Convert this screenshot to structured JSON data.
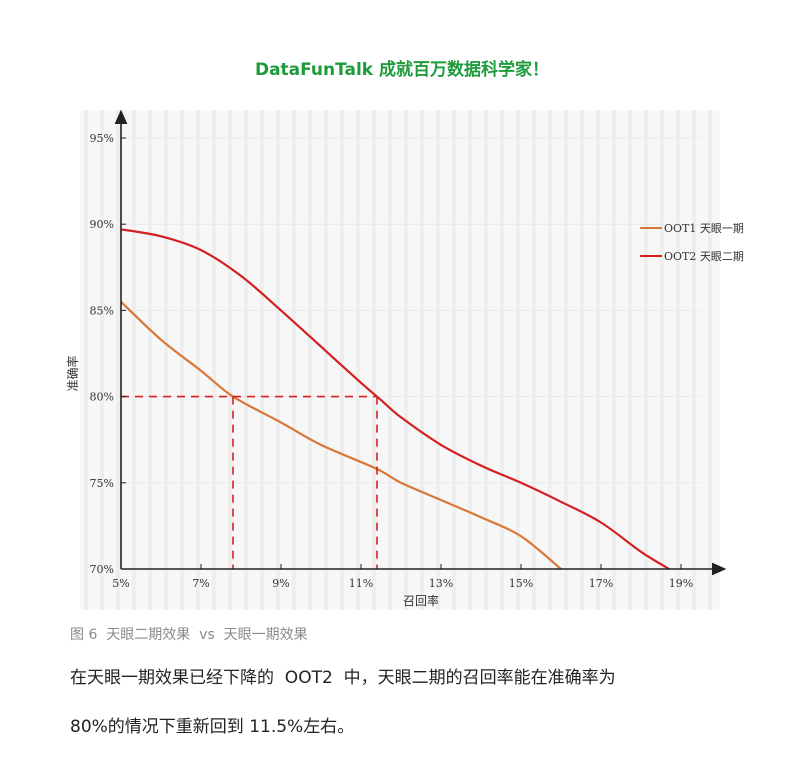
{
  "banner": {
    "text": "DataFunTalk 成就百万数据科学家！"
  },
  "caption": "图 6  天眼二期效果  vs  天眼一期效果",
  "paragraph": {
    "line1": "在天眼一期效果已经下降的  OOT2  中，天眼二期的召回率能在准确率为",
    "line2": "80%的情况下重新回到 11.5%左右。"
  },
  "chart_data": {
    "type": "line",
    "xlabel": "召回率",
    "ylabel": "准确率",
    "xlim": [
      5,
      19
    ],
    "ylim": [
      70,
      95
    ],
    "x_ticks": [
      5,
      7,
      9,
      11,
      13,
      15,
      17,
      19
    ],
    "x_tick_labels": [
      "5%",
      "7%",
      "9%",
      "11%",
      "13%",
      "15%",
      "17%",
      "19%"
    ],
    "y_ticks": [
      70,
      75,
      80,
      85,
      90,
      95
    ],
    "y_tick_labels": [
      "70%",
      "75%",
      "80%",
      "85%",
      "90%",
      "95%"
    ],
    "legend_position": "right",
    "series": [
      {
        "name": "OOT1  天眼一期",
        "color": "#d9773a",
        "x": [
          5.0,
          6.0,
          7.0,
          7.8,
          9.0,
          10.0,
          11.4,
          12.0,
          13.0,
          14.0,
          15.0,
          16.0
        ],
        "y": [
          85.5,
          83.3,
          81.5,
          80.0,
          78.5,
          77.2,
          75.8,
          75.0,
          74.0,
          73.0,
          71.9,
          70.0
        ]
      },
      {
        "name": "OOT2  天眼二期",
        "color": "#d42020",
        "x": [
          5.0,
          6.0,
          7.0,
          8.0,
          9.0,
          10.0,
          11.0,
          11.5,
          12.0,
          13.0,
          14.0,
          15.0,
          16.0,
          17.0,
          18.0,
          18.7
        ],
        "y": [
          89.7,
          89.3,
          88.5,
          87.0,
          85.0,
          82.9,
          80.8,
          79.8,
          78.8,
          77.2,
          76.0,
          75.0,
          73.9,
          72.7,
          71.0,
          70.0
        ]
      }
    ],
    "reference_lines": {
      "color": "#d42020",
      "style": "dashed",
      "y": 80,
      "x": [
        7.8,
        11.4
      ]
    }
  }
}
